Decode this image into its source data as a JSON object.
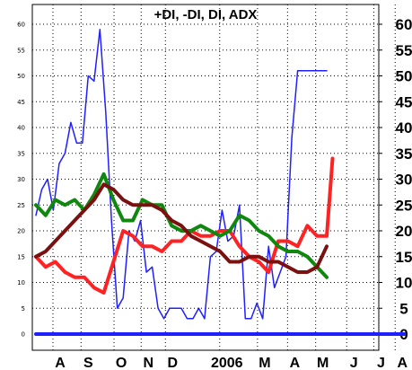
{
  "chart_data": {
    "type": "line",
    "title": "+DI, -DI, DI, ADX",
    "xlabel": "",
    "ylabel": "",
    "x_range": [
      0,
      38
    ],
    "ylim": [
      0,
      60
    ],
    "y_ticks_left": [
      0,
      5,
      10,
      15,
      20,
      25,
      30,
      35,
      40,
      45,
      50,
      55,
      60
    ],
    "y_ticks_right": [
      0,
      5,
      10,
      15,
      20,
      25,
      30,
      35,
      40,
      45,
      50,
      55,
      60
    ],
    "x_tick_labels": [
      {
        "label": "A",
        "x": 2.5
      },
      {
        "label": "S",
        "x": 5.4
      },
      {
        "label": "O",
        "x": 8.8
      },
      {
        "label": "N",
        "x": 11.6
      },
      {
        "label": "D",
        "x": 14.1
      },
      {
        "label": "2006",
        "x": 19.7
      },
      {
        "label": "M",
        "x": 23.6
      },
      {
        "label": "A",
        "x": 26.7
      },
      {
        "label": "M",
        "x": 29.6
      },
      {
        "label": "J",
        "x": 32.8
      },
      {
        "label": "J",
        "x": 35.6
      },
      {
        "label": "A",
        "x": 37.8
      }
    ],
    "grid": true,
    "series": [
      {
        "color": "#1f1fff",
        "width": 1.5,
        "x": [
          0,
          0.6,
          1.2,
          1.8,
          2.4,
          3.0,
          3.6,
          4.2,
          4.8,
          5.4,
          6.0,
          6.6,
          7.2,
          7.8,
          8.4,
          9.0,
          9.6,
          10.2,
          10.8,
          11.4,
          12.0,
          12.6,
          13.2,
          13.8,
          14.4,
          15.0,
          15.6,
          16.2,
          16.8,
          17.4,
          18.0,
          18.6,
          19.2,
          19.8,
          20.4,
          21.0,
          21.6,
          22.2,
          22.8,
          23.4,
          24.0,
          24.6,
          25.2,
          25.8,
          26.4,
          27.0,
          27.6,
          28.2,
          28.8,
          29.4,
          30.0
        ],
        "values": [
          23,
          28,
          30,
          24,
          33,
          35,
          41,
          37,
          37,
          50,
          49,
          59,
          43,
          22,
          5,
          7,
          20,
          18,
          22,
          12,
          13,
          5,
          3,
          5,
          5,
          5,
          3,
          3,
          5,
          3,
          15,
          16,
          24,
          18,
          19,
          25,
          3,
          3,
          6,
          3,
          17,
          9,
          12,
          15,
          38,
          51,
          51,
          51,
          51,
          51,
          51
        ]
      },
      {
        "color": "#ff2222",
        "width": 4,
        "x": [
          0,
          1,
          2,
          3,
          4,
          5,
          6,
          7,
          8,
          9,
          10,
          11,
          12,
          13,
          14,
          15,
          16,
          17,
          18,
          19,
          20,
          21,
          22,
          23,
          24,
          25,
          26,
          27,
          28,
          29,
          30,
          30.6
        ],
        "values": [
          15,
          13,
          14,
          12,
          11,
          11,
          9,
          8,
          14,
          20,
          19,
          17,
          17,
          16,
          18,
          18,
          20,
          19,
          19,
          20,
          20,
          17,
          15,
          14,
          12,
          18,
          18,
          17,
          21,
          19,
          19,
          34
        ]
      },
      {
        "color": "#108810",
        "width": 4,
        "x": [
          0,
          1,
          2,
          3,
          4,
          5,
          6,
          7,
          8,
          9,
          10,
          11,
          12,
          13,
          14,
          15,
          16,
          17,
          18,
          19,
          20,
          21,
          22,
          23,
          24,
          25,
          26,
          27,
          28,
          29,
          30
        ],
        "values": [
          25,
          23,
          26,
          25,
          26,
          24,
          27,
          31,
          26,
          22,
          22,
          26,
          25,
          25,
          21,
          20,
          20,
          21,
          20,
          19,
          20,
          23,
          22,
          20,
          19,
          17,
          16,
          16,
          15,
          13,
          11
        ]
      },
      {
        "color": "#7a1010",
        "width": 4,
        "x": [
          0,
          1,
          2,
          3,
          4,
          5,
          6,
          7,
          8,
          9,
          10,
          11,
          12,
          13,
          14,
          15,
          16,
          17,
          18,
          19,
          20,
          21,
          22,
          23,
          24,
          25,
          26,
          27,
          28,
          29,
          30
        ],
        "values": [
          15,
          16,
          18,
          20,
          22,
          24,
          26,
          29,
          28,
          26,
          25,
          25,
          25,
          24,
          22,
          21,
          19,
          18,
          17,
          16,
          14,
          14,
          15,
          15,
          14,
          14,
          13,
          12,
          12,
          13,
          17
        ]
      },
      {
        "color": "#1f1fff",
        "width": 4,
        "x": [
          0,
          38
        ],
        "values": [
          0,
          0
        ]
      }
    ]
  }
}
